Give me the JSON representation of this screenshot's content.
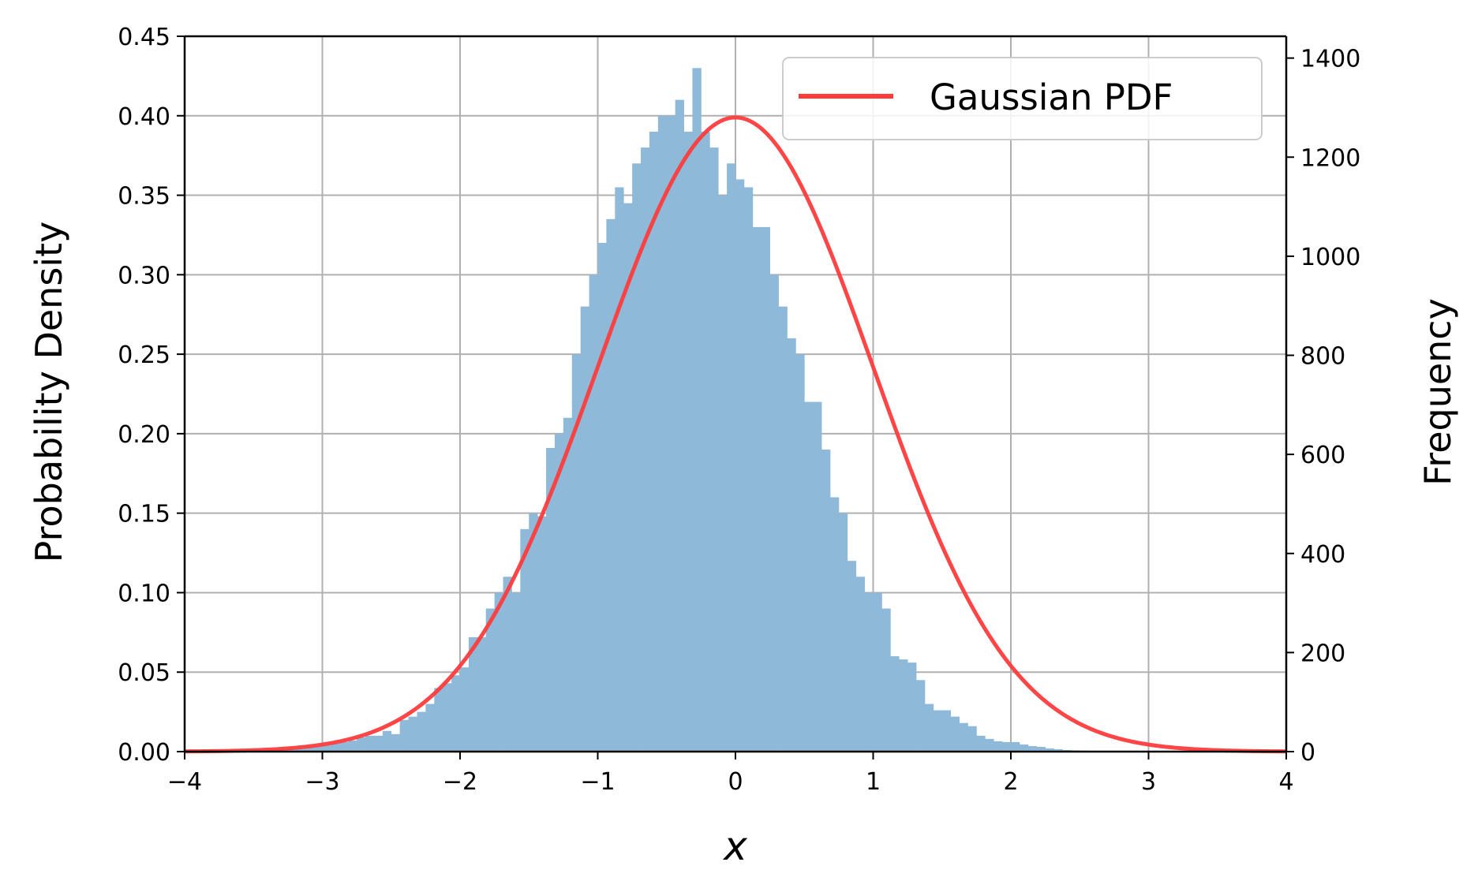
{
  "chart_data": {
    "type": "bar",
    "description_free": true,
    "xlabel": "x",
    "ylabel_left": "Probability Density",
    "ylabel_right": "Frequency",
    "xlim": [
      -4,
      4
    ],
    "ylim_left": [
      0,
      0.45
    ],
    "ylim_right": [
      0,
      1444
    ],
    "x_ticks": [
      -4,
      -3,
      -2,
      -1,
      0,
      1,
      2,
      3,
      4
    ],
    "x_tick_labels": [
      "−4",
      "−3",
      "−2",
      "−1",
      "0",
      "1",
      "2",
      "3",
      "4"
    ],
    "y_left_ticks": [
      0.0,
      0.05,
      0.1,
      0.15,
      0.2,
      0.25,
      0.3,
      0.35,
      0.4,
      0.45
    ],
    "y_left_tick_labels": [
      "0.00",
      "0.05",
      "0.10",
      "0.15",
      "0.20",
      "0.25",
      "0.30",
      "0.35",
      "0.40",
      "0.45"
    ],
    "y_right_ticks": [
      0,
      200,
      400,
      600,
      800,
      1000,
      1200,
      1400
    ],
    "y_right_tick_labels": [
      "0",
      "200",
      "400",
      "600",
      "800",
      "1000",
      "1200",
      "1400"
    ],
    "grid": true,
    "legend_position": "top-right",
    "histogram": {
      "bin_width": 0.0625,
      "bin_left_edges": [
        -3.5,
        -3.4375,
        -3.375,
        -3.3125,
        -3.25,
        -3.1875,
        -3.125,
        -3.0625,
        -3.0,
        -2.9375,
        -2.875,
        -2.8125,
        -2.75,
        -2.6875,
        -2.625,
        -2.5625,
        -2.5,
        -2.4375,
        -2.375,
        -2.3125,
        -2.25,
        -2.1875,
        -2.125,
        -2.0625,
        -2.0,
        -1.9375,
        -1.875,
        -1.8125,
        -1.75,
        -1.6875,
        -1.625,
        -1.5625,
        -1.5,
        -1.4375,
        -1.375,
        -1.3125,
        -1.25,
        -1.1875,
        -1.125,
        -1.0625,
        -1.0,
        -0.9375,
        -0.875,
        -0.8125,
        -0.75,
        -0.6875,
        -0.625,
        -0.5625,
        -0.5,
        -0.4375,
        -0.375,
        -0.3125,
        -0.25,
        -0.1875,
        -0.125,
        -0.0625,
        0.0,
        0.0625,
        0.125,
        0.1875,
        0.25,
        0.3125,
        0.375,
        0.4375,
        0.5,
        0.5625,
        0.625,
        0.6875,
        0.75,
        0.8125,
        0.875,
        0.9375,
        1.0,
        1.0625,
        1.125,
        1.1875,
        1.25,
        1.3125,
        1.375,
        1.4375,
        1.5,
        1.5625,
        1.625,
        1.6875,
        1.75,
        1.8125,
        1.875,
        1.9375,
        2.0,
        2.0625,
        2.125,
        2.1875,
        2.25,
        2.3125,
        2.375,
        2.4375,
        2.5,
        2.5625,
        2.625,
        2.6875,
        2.75,
        2.8125,
        2.875,
        2.9375,
        3.0,
        3.0625,
        3.125,
        3.1875,
        3.25,
        3.3125,
        3.375,
        3.4375
      ],
      "density_values": [
        0.0008,
        0.001,
        0.0012,
        0.0015,
        0.0018,
        0.002,
        0.003,
        0.0035,
        0.004,
        0.005,
        0.006,
        0.007,
        0.009,
        0.01,
        0.01,
        0.013,
        0.011,
        0.02,
        0.022,
        0.025,
        0.03,
        0.04,
        0.043,
        0.048,
        0.053,
        0.072,
        0.072,
        0.09,
        0.1,
        0.11,
        0.1,
        0.14,
        0.15,
        0.148,
        0.191,
        0.2,
        0.21,
        0.25,
        0.28,
        0.3,
        0.32,
        0.335,
        0.355,
        0.345,
        0.37,
        0.38,
        0.39,
        0.4,
        0.4,
        0.41,
        0.39,
        0.43,
        0.39,
        0.38,
        0.35,
        0.37,
        0.36,
        0.355,
        0.33,
        0.33,
        0.3,
        0.28,
        0.26,
        0.25,
        0.22,
        0.22,
        0.19,
        0.16,
        0.15,
        0.12,
        0.11,
        0.1,
        0.1,
        0.09,
        0.06,
        0.058,
        0.056,
        0.045,
        0.03,
        0.026,
        0.026,
        0.022,
        0.018,
        0.016,
        0.01,
        0.008,
        0.0065,
        0.006,
        0.006,
        0.0045,
        0.0035,
        0.003,
        0.002,
        0.0015,
        0.001,
        0.0008,
        0.0006,
        0.0005,
        0.0004,
        0.0003,
        0.0002,
        0.0002,
        0.0001,
        0.0001,
        0.0001,
        0.0001,
        0.0001,
        0.0001,
        0.0001,
        0.0001,
        0.0001,
        0.0001
      ],
      "color": "#1f77b4",
      "alpha": 0.5
    },
    "series": [
      {
        "name": "Gaussian PDF",
        "type": "line",
        "function": "normal_pdf",
        "mean": 0,
        "std": 1,
        "color": "#ff0000",
        "alpha": 0.75
      }
    ]
  },
  "colors": {
    "grid": "#b0b0b0",
    "axis": "#000000",
    "bars": "#8fb9d9",
    "line": "#ff3b3b"
  }
}
